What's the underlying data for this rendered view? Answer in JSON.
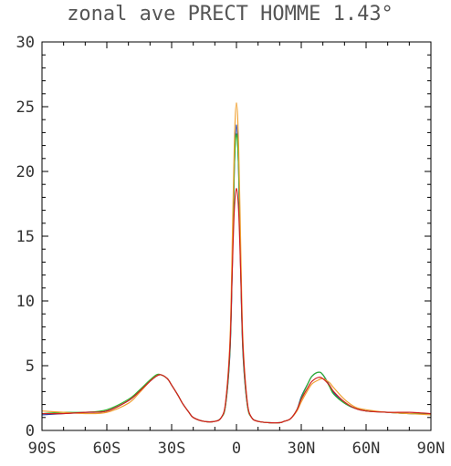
{
  "chart_data": {
    "type": "line",
    "title": "zonal ave PRECT HOMME 1.43°",
    "xlabel": "",
    "ylabel": "",
    "xlim": [
      -90,
      90
    ],
    "ylim": [
      0,
      30
    ],
    "x_ticks": [
      -90,
      -60,
      -30,
      0,
      30,
      60,
      90
    ],
    "x_tick_labels": [
      "90S",
      "60S",
      "30S",
      "0",
      "30N",
      "60N",
      "90N"
    ],
    "y_ticks": [
      0,
      5,
      10,
      15,
      20,
      25,
      30
    ],
    "y_tick_labels": [
      "0",
      "5",
      "10",
      "15",
      "20",
      "25",
      "30"
    ],
    "grid": false,
    "x": [
      -90,
      -80,
      -70,
      -60,
      -50,
      -45,
      -40,
      -37,
      -35,
      -32,
      -30,
      -27,
      -25,
      -22,
      -20,
      -15,
      -10,
      -7,
      -5,
      -3,
      -2,
      -1,
      0,
      1,
      2,
      3,
      5,
      7,
      10,
      15,
      20,
      22,
      25,
      28,
      30,
      33,
      35,
      38,
      40,
      43,
      45,
      50,
      55,
      60,
      70,
      80,
      90
    ],
    "series": [
      {
        "color": "#1f3fa8",
        "values": [
          1.2,
          1.3,
          1.4,
          1.5,
          2.3,
          3.0,
          3.8,
          4.2,
          4.3,
          4.0,
          3.5,
          2.7,
          2.1,
          1.4,
          1.0,
          0.7,
          0.7,
          1.0,
          2.0,
          6.0,
          12.0,
          20.0,
          23.6,
          20.0,
          12.0,
          6.0,
          2.0,
          1.0,
          0.7,
          0.6,
          0.6,
          0.7,
          0.9,
          1.6,
          2.6,
          3.6,
          4.2,
          4.5,
          4.3,
          3.5,
          2.9,
          2.1,
          1.7,
          1.5,
          1.4,
          1.3,
          1.3
        ]
      },
      {
        "color": "#2fb52f",
        "values": [
          1.3,
          1.4,
          1.4,
          1.6,
          2.4,
          3.1,
          3.9,
          4.3,
          4.3,
          4.0,
          3.5,
          2.7,
          2.1,
          1.4,
          1.0,
          0.7,
          0.7,
          1.0,
          2.0,
          6.2,
          12.5,
          20.2,
          22.9,
          20.2,
          12.5,
          6.2,
          2.0,
          1.0,
          0.7,
          0.6,
          0.6,
          0.7,
          0.9,
          1.6,
          2.5,
          3.6,
          4.2,
          4.5,
          4.3,
          3.4,
          2.8,
          2.1,
          1.7,
          1.5,
          1.4,
          1.3,
          1.3
        ]
      },
      {
        "color": "#f0a030",
        "values": [
          1.5,
          1.4,
          1.3,
          1.4,
          2.1,
          2.9,
          3.8,
          4.2,
          4.3,
          4.0,
          3.5,
          2.7,
          2.1,
          1.4,
          1.0,
          0.7,
          0.7,
          1.0,
          2.2,
          7.0,
          14.0,
          22.0,
          25.3,
          22.0,
          14.0,
          7.0,
          2.2,
          1.0,
          0.7,
          0.6,
          0.6,
          0.7,
          0.9,
          1.5,
          2.2,
          3.1,
          3.6,
          3.9,
          4.0,
          3.7,
          3.3,
          2.4,
          1.8,
          1.6,
          1.4,
          1.3,
          1.2
        ]
      },
      {
        "color": "#d02020",
        "values": [
          1.3,
          1.3,
          1.4,
          1.5,
          2.3,
          3.0,
          3.8,
          4.2,
          4.3,
          4.0,
          3.5,
          2.7,
          2.1,
          1.4,
          1.0,
          0.7,
          0.7,
          1.0,
          2.2,
          6.5,
          12.0,
          17.0,
          18.7,
          17.0,
          12.0,
          6.5,
          2.2,
          1.0,
          0.7,
          0.6,
          0.6,
          0.7,
          0.9,
          1.6,
          2.4,
          3.3,
          3.8,
          4.1,
          4.0,
          3.5,
          3.0,
          2.2,
          1.7,
          1.5,
          1.4,
          1.4,
          1.3
        ]
      }
    ]
  }
}
